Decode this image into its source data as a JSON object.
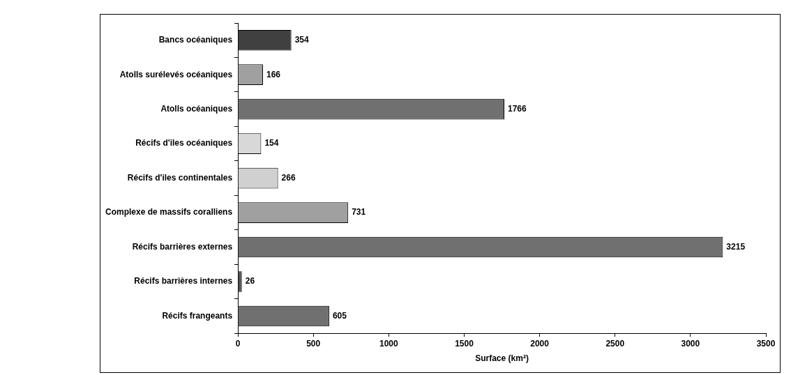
{
  "chart_data": {
    "type": "bar",
    "orientation": "horizontal",
    "xlabel": "Surface (km²)",
    "categories": [
      "Bancs océaniques",
      "Atolls surélevés océaniques",
      "Atolls océaniques",
      "Récifs d'iles océaniques",
      "Récifs d'iles continentales",
      "Complexe de massifs coralliens",
      "Récifs barrières externes",
      "Récifs barrières internes",
      "Récifs frangeants"
    ],
    "values": [
      354,
      166,
      1766,
      154,
      266,
      731,
      3215,
      26,
      605
    ],
    "colors": [
      "#404040",
      "#a0a0a0",
      "#707070",
      "#d8d8d8",
      "#d0d0d0",
      "#a0a0a0",
      "#707070",
      "#505050",
      "#707070"
    ],
    "xlim": [
      0,
      3500
    ],
    "xticks": [
      0,
      500,
      1000,
      1500,
      2000,
      2500,
      3000,
      3500
    ],
    "data_labels": true,
    "grid": false,
    "legend": false
  }
}
